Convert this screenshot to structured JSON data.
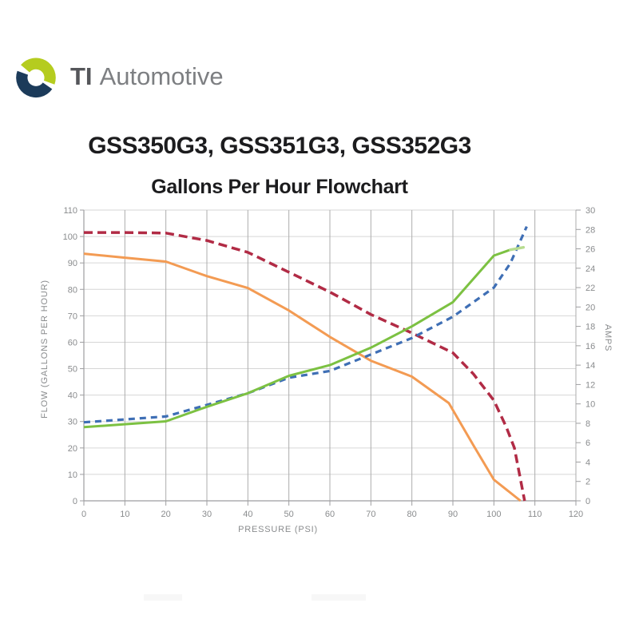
{
  "brand": {
    "name_bold": "TI",
    "name_rest": "Automotive",
    "icon_green": "#B5CC1F",
    "icon_navy": "#1C3B5A"
  },
  "page_title": "GSS350G3, GSS351G3, GSS352G3",
  "chart_data": {
    "type": "line",
    "title": "Gallons Per Hour Flowchart",
    "xlabel": "PRESSURE (PSI)",
    "ylabel_left": "FLOW (GALLONS PER HOUR)",
    "ylabel_right": "AMPS",
    "x_axis": {
      "min": 0,
      "max": 120,
      "step": 10
    },
    "y_left_axis": {
      "min": 0,
      "max": 110,
      "step": 10
    },
    "y_right_axis": {
      "min": 0,
      "max": 30,
      "step": 2
    },
    "legend": "none",
    "grid": {
      "vertical_color": "#ADADAD",
      "horizontal_color": "#D6D6D6",
      "axis_color": "#9E9EA0",
      "tick_label_color": "#8A8C8E"
    },
    "series": [
      {
        "name": "flow-high-dashed-red",
        "axis": "left",
        "line": "dashed",
        "color": "#B12B45",
        "width": 3.5,
        "dash": "11 6",
        "points": [
          [
            0,
            101.5
          ],
          [
            10,
            101.5
          ],
          [
            20,
            101.3
          ],
          [
            30,
            98.5
          ],
          [
            40,
            94
          ],
          [
            50,
            86.5
          ],
          [
            60,
            79
          ],
          [
            70,
            70.5
          ],
          [
            80,
            63.5
          ],
          [
            90,
            56
          ],
          [
            95,
            48
          ],
          [
            100,
            38
          ],
          [
            103,
            28
          ],
          [
            105,
            20
          ],
          [
            107.5,
            0
          ]
        ]
      },
      {
        "name": "flow-low-solid-orange",
        "axis": "left",
        "line": "solid",
        "color": "#F39B53",
        "width": 3,
        "points": [
          [
            0,
            93.5
          ],
          [
            10,
            92
          ],
          [
            20,
            90.5
          ],
          [
            30,
            85
          ],
          [
            40,
            80.5
          ],
          [
            50,
            72
          ],
          [
            60,
            62
          ],
          [
            70,
            53
          ],
          [
            80,
            47
          ],
          [
            89,
            37
          ],
          [
            95,
            21
          ],
          [
            100,
            8
          ],
          [
            106.5,
            0
          ]
        ]
      },
      {
        "name": "amps-dashed-blue",
        "axis": "right",
        "line": "dashed",
        "color": "#3F6FB5",
        "width": 3.2,
        "dash": "8 6",
        "points": [
          [
            0,
            8.1
          ],
          [
            10,
            8.4
          ],
          [
            20,
            8.7
          ],
          [
            30,
            9.9
          ],
          [
            40,
            11.1
          ],
          [
            50,
            12.7
          ],
          [
            60,
            13.4
          ],
          [
            70,
            15.1
          ],
          [
            80,
            16.8
          ],
          [
            90,
            19
          ],
          [
            100,
            22
          ],
          [
            104,
            24.5
          ],
          [
            108,
            28.3
          ]
        ]
      },
      {
        "name": "amps-solid-green",
        "axis": "right",
        "line": "solid",
        "color": "#7CC142",
        "width": 3,
        "points": [
          [
            0,
            7.6
          ],
          [
            10,
            7.9
          ],
          [
            20,
            8.2
          ],
          [
            30,
            9.7
          ],
          [
            40,
            11.1
          ],
          [
            50,
            12.9
          ],
          [
            60,
            14
          ],
          [
            70,
            15.8
          ],
          [
            80,
            18
          ],
          [
            90,
            20.5
          ],
          [
            100,
            25.3
          ],
          [
            104,
            25.9
          ]
        ],
        "end_tick": {
          "points": [
            [
              104,
              25.9
            ],
            [
              107.2,
              26.15
            ]
          ],
          "color": "#B7DC8F"
        }
      }
    ]
  }
}
